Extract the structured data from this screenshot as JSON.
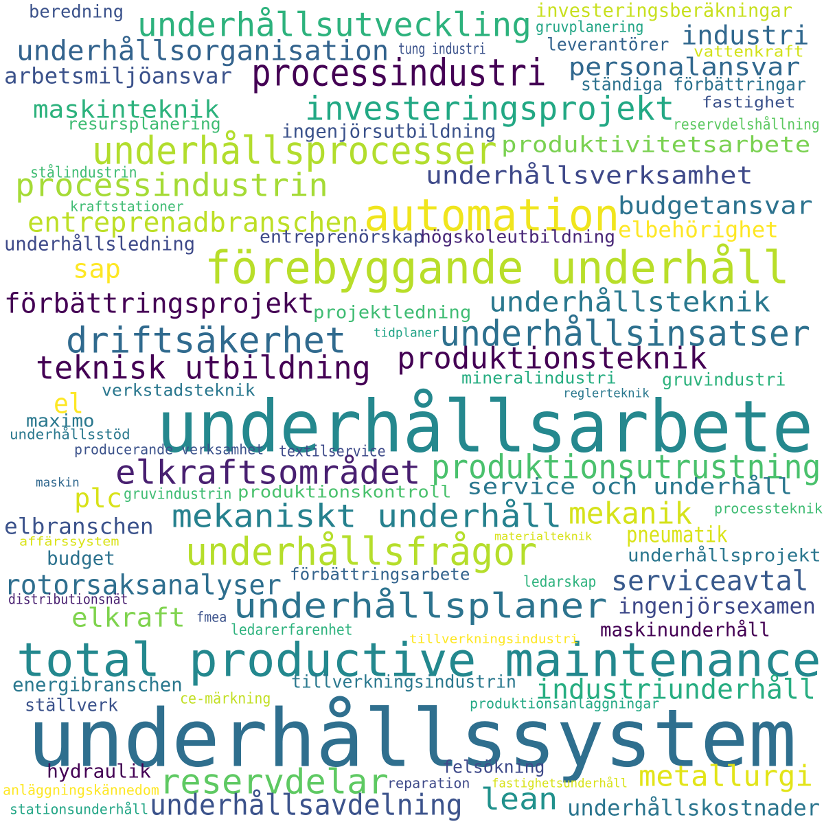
{
  "words": [
    {
      "text": "underhållssystem",
      "color": "#2f6f8e"
    },
    {
      "text": "underhållsarbete",
      "color": "#25888e"
    },
    {
      "text": "total productive maintenance",
      "color": "#23888e"
    },
    {
      "text": "förebyggande underhåll",
      "color": "#b8de29"
    },
    {
      "text": "automation",
      "color": "#f0e51d"
    },
    {
      "text": "underhållsfrågor",
      "color": "#b5de2b"
    },
    {
      "text": "underhållsprocesser",
      "color": "#b2dd2d"
    },
    {
      "text": "underhållsplaner",
      "color": "#2c738e"
    },
    {
      "text": "underhållsinsatser",
      "color": "#2d708e"
    },
    {
      "text": "underhållsutveckling",
      "color": "#2db27d"
    },
    {
      "text": "investeringsprojekt",
      "color": "#22a884"
    },
    {
      "text": "processindustri",
      "color": "#440154"
    },
    {
      "text": "processindustrin",
      "color": "#a5db36"
    },
    {
      "text": "driftsäkerhet",
      "color": "#306a8e"
    },
    {
      "text": "mekaniskt underhåll",
      "color": "#26818e"
    },
    {
      "text": "elkraftsområdet",
      "color": "#481f70"
    },
    {
      "text": "produktionsteknik",
      "color": "#440154"
    },
    {
      "text": "teknisk utbildning",
      "color": "#440154"
    },
    {
      "text": "produktionsutrustning",
      "color": "#4ac16d"
    },
    {
      "text": "reservdelar",
      "color": "#5ec962"
    },
    {
      "text": "underhållsorganisation",
      "color": "#33638d"
    },
    {
      "text": "förbättringsprojekt",
      "color": "#440154"
    },
    {
      "text": "mekanik",
      "color": "#d5e21a"
    },
    {
      "text": "underhållsteknik",
      "color": "#2a788e"
    },
    {
      "text": "entreprenadbranschen",
      "color": "#bddf26"
    },
    {
      "text": "industriunderhåll",
      "color": "#27ad81"
    },
    {
      "text": "underhållsavdelning",
      "color": "#3b528b"
    },
    {
      "text": "lean",
      "color": "#21918c"
    },
    {
      "text": "personalansvar",
      "color": "#31688e"
    },
    {
      "text": "metallurgi",
      "color": "#e2e418"
    },
    {
      "text": "underhållsverksamhet",
      "color": "#3e4989"
    },
    {
      "text": "rotorsaksanalyser",
      "color": "#2e6e8e"
    },
    {
      "text": "serviceavtal",
      "color": "#38598c"
    },
    {
      "text": "industri",
      "color": "#31688e"
    },
    {
      "text": "budgetansvar",
      "color": "#2c728e"
    },
    {
      "text": "service och underhåll",
      "color": "#2a778e"
    },
    {
      "text": "maskinteknik",
      "color": "#2db27d"
    },
    {
      "text": "produktivitetsarbete",
      "color": "#7ad151"
    },
    {
      "text": "arbetsmiljöansvar",
      "color": "#3b528b"
    },
    {
      "text": "elkraft",
      "color": "#7fd34e"
    },
    {
      "text": "ingenjörsexamen",
      "color": "#3e4989"
    },
    {
      "text": "underhållskostnader",
      "color": "#2b758e"
    },
    {
      "text": "elbranschen",
      "color": "#3b528b"
    },
    {
      "text": "plc",
      "color": "#d8e219"
    },
    {
      "text": "pneumatik",
      "color": "#dae319"
    },
    {
      "text": "sap",
      "color": "#fde725"
    },
    {
      "text": "el",
      "color": "#fde725"
    },
    {
      "text": "elbehörighet",
      "color": "#fde725"
    },
    {
      "text": "underhållsledning",
      "color": "#3e4a89"
    },
    {
      "text": "entreprenörskap",
      "color": "#3e4989"
    },
    {
      "text": "högskoleutbildning",
      "color": "#482677"
    },
    {
      "text": "energibranschen",
      "color": "#2a788e"
    },
    {
      "text": "hydraulik",
      "color": "#440154"
    },
    {
      "text": "maskinunderhåll",
      "color": "#440154"
    },
    {
      "text": "investeringsberäkningar",
      "color": "#c8e020"
    },
    {
      "text": "ingenjörsutbildning",
      "color": "#3b528b"
    },
    {
      "text": "resursplanering",
      "color": "#3fbc73"
    },
    {
      "text": "projektledning",
      "color": "#3fbc73"
    },
    {
      "text": "verkstadsteknik",
      "color": "#2a778e"
    },
    {
      "text": "mineralindustri",
      "color": "#26ad81"
    },
    {
      "text": "gruvindustri",
      "color": "#2db27d"
    },
    {
      "text": "produktionskontroll",
      "color": "#4ac16d"
    },
    {
      "text": "gruvindustrin",
      "color": "#3fbc73"
    },
    {
      "text": "underhållsprojekt",
      "color": "#2a768e"
    },
    {
      "text": "förbättringsarbete",
      "color": "#33638d"
    },
    {
      "text": "tillverkningsindustrin",
      "color": "#2a788e"
    },
    {
      "text": "budget",
      "color": "#2c728e"
    },
    {
      "text": "ställverk",
      "color": "#3b528b"
    },
    {
      "text": "maximo",
      "color": "#2a788e"
    },
    {
      "text": "felsökning",
      "color": "#3e4989"
    },
    {
      "text": "beredning",
      "color": "#3b528b"
    },
    {
      "text": "leverantörer",
      "color": "#33638d"
    },
    {
      "text": "ständiga förbättringar",
      "color": "#2c728e"
    },
    {
      "text": "gruvplanering",
      "color": "#21a585"
    },
    {
      "text": "tung industri",
      "color": "#3b528b"
    },
    {
      "text": "vattenkraft",
      "color": "#d2e21b"
    },
    {
      "text": "fastighet",
      "color": "#3b528b"
    },
    {
      "text": "reservdelshållning",
      "color": "#5ec962"
    },
    {
      "text": "stålindustrin",
      "color": "#3fbc73"
    },
    {
      "text": "kraftstationer",
      "color": "#3fbc73"
    },
    {
      "text": "tidplaner",
      "color": "#20a386"
    },
    {
      "text": "reglerteknik",
      "color": "#2a788e"
    },
    {
      "text": "underhållsstöd",
      "color": "#2a788e"
    },
    {
      "text": "producerande verksamhet",
      "color": "#3b528b"
    },
    {
      "text": "textilservice",
      "color": "#3e4a89"
    },
    {
      "text": "maskin",
      "color": "#31688e"
    },
    {
      "text": "processteknik",
      "color": "#3fbc73"
    },
    {
      "text": "materialteknik",
      "color": "#d8e219"
    },
    {
      "text": "affärssystem",
      "color": "#dae319"
    },
    {
      "text": "ledarskap",
      "color": "#2db27d"
    },
    {
      "text": "distributionsnät",
      "color": "#481f70"
    },
    {
      "text": "fmea",
      "color": "#3b528b"
    },
    {
      "text": "ledarerfarenhet",
      "color": "#2db27d"
    },
    {
      "text": "tillverkningsindustri",
      "color": "#fde725"
    },
    {
      "text": "ce-märkning",
      "color": "#c2df23"
    },
    {
      "text": "produktionsanläggningar",
      "color": "#22a884"
    },
    {
      "text": "anläggningskännedom",
      "color": "#fde725"
    },
    {
      "text": "reparation",
      "color": "#3e4a89"
    },
    {
      "text": "fastighetsunderhåll",
      "color": "#d8e219"
    },
    {
      "text": "stationsunderhåll",
      "color": "#21a585"
    }
  ]
}
